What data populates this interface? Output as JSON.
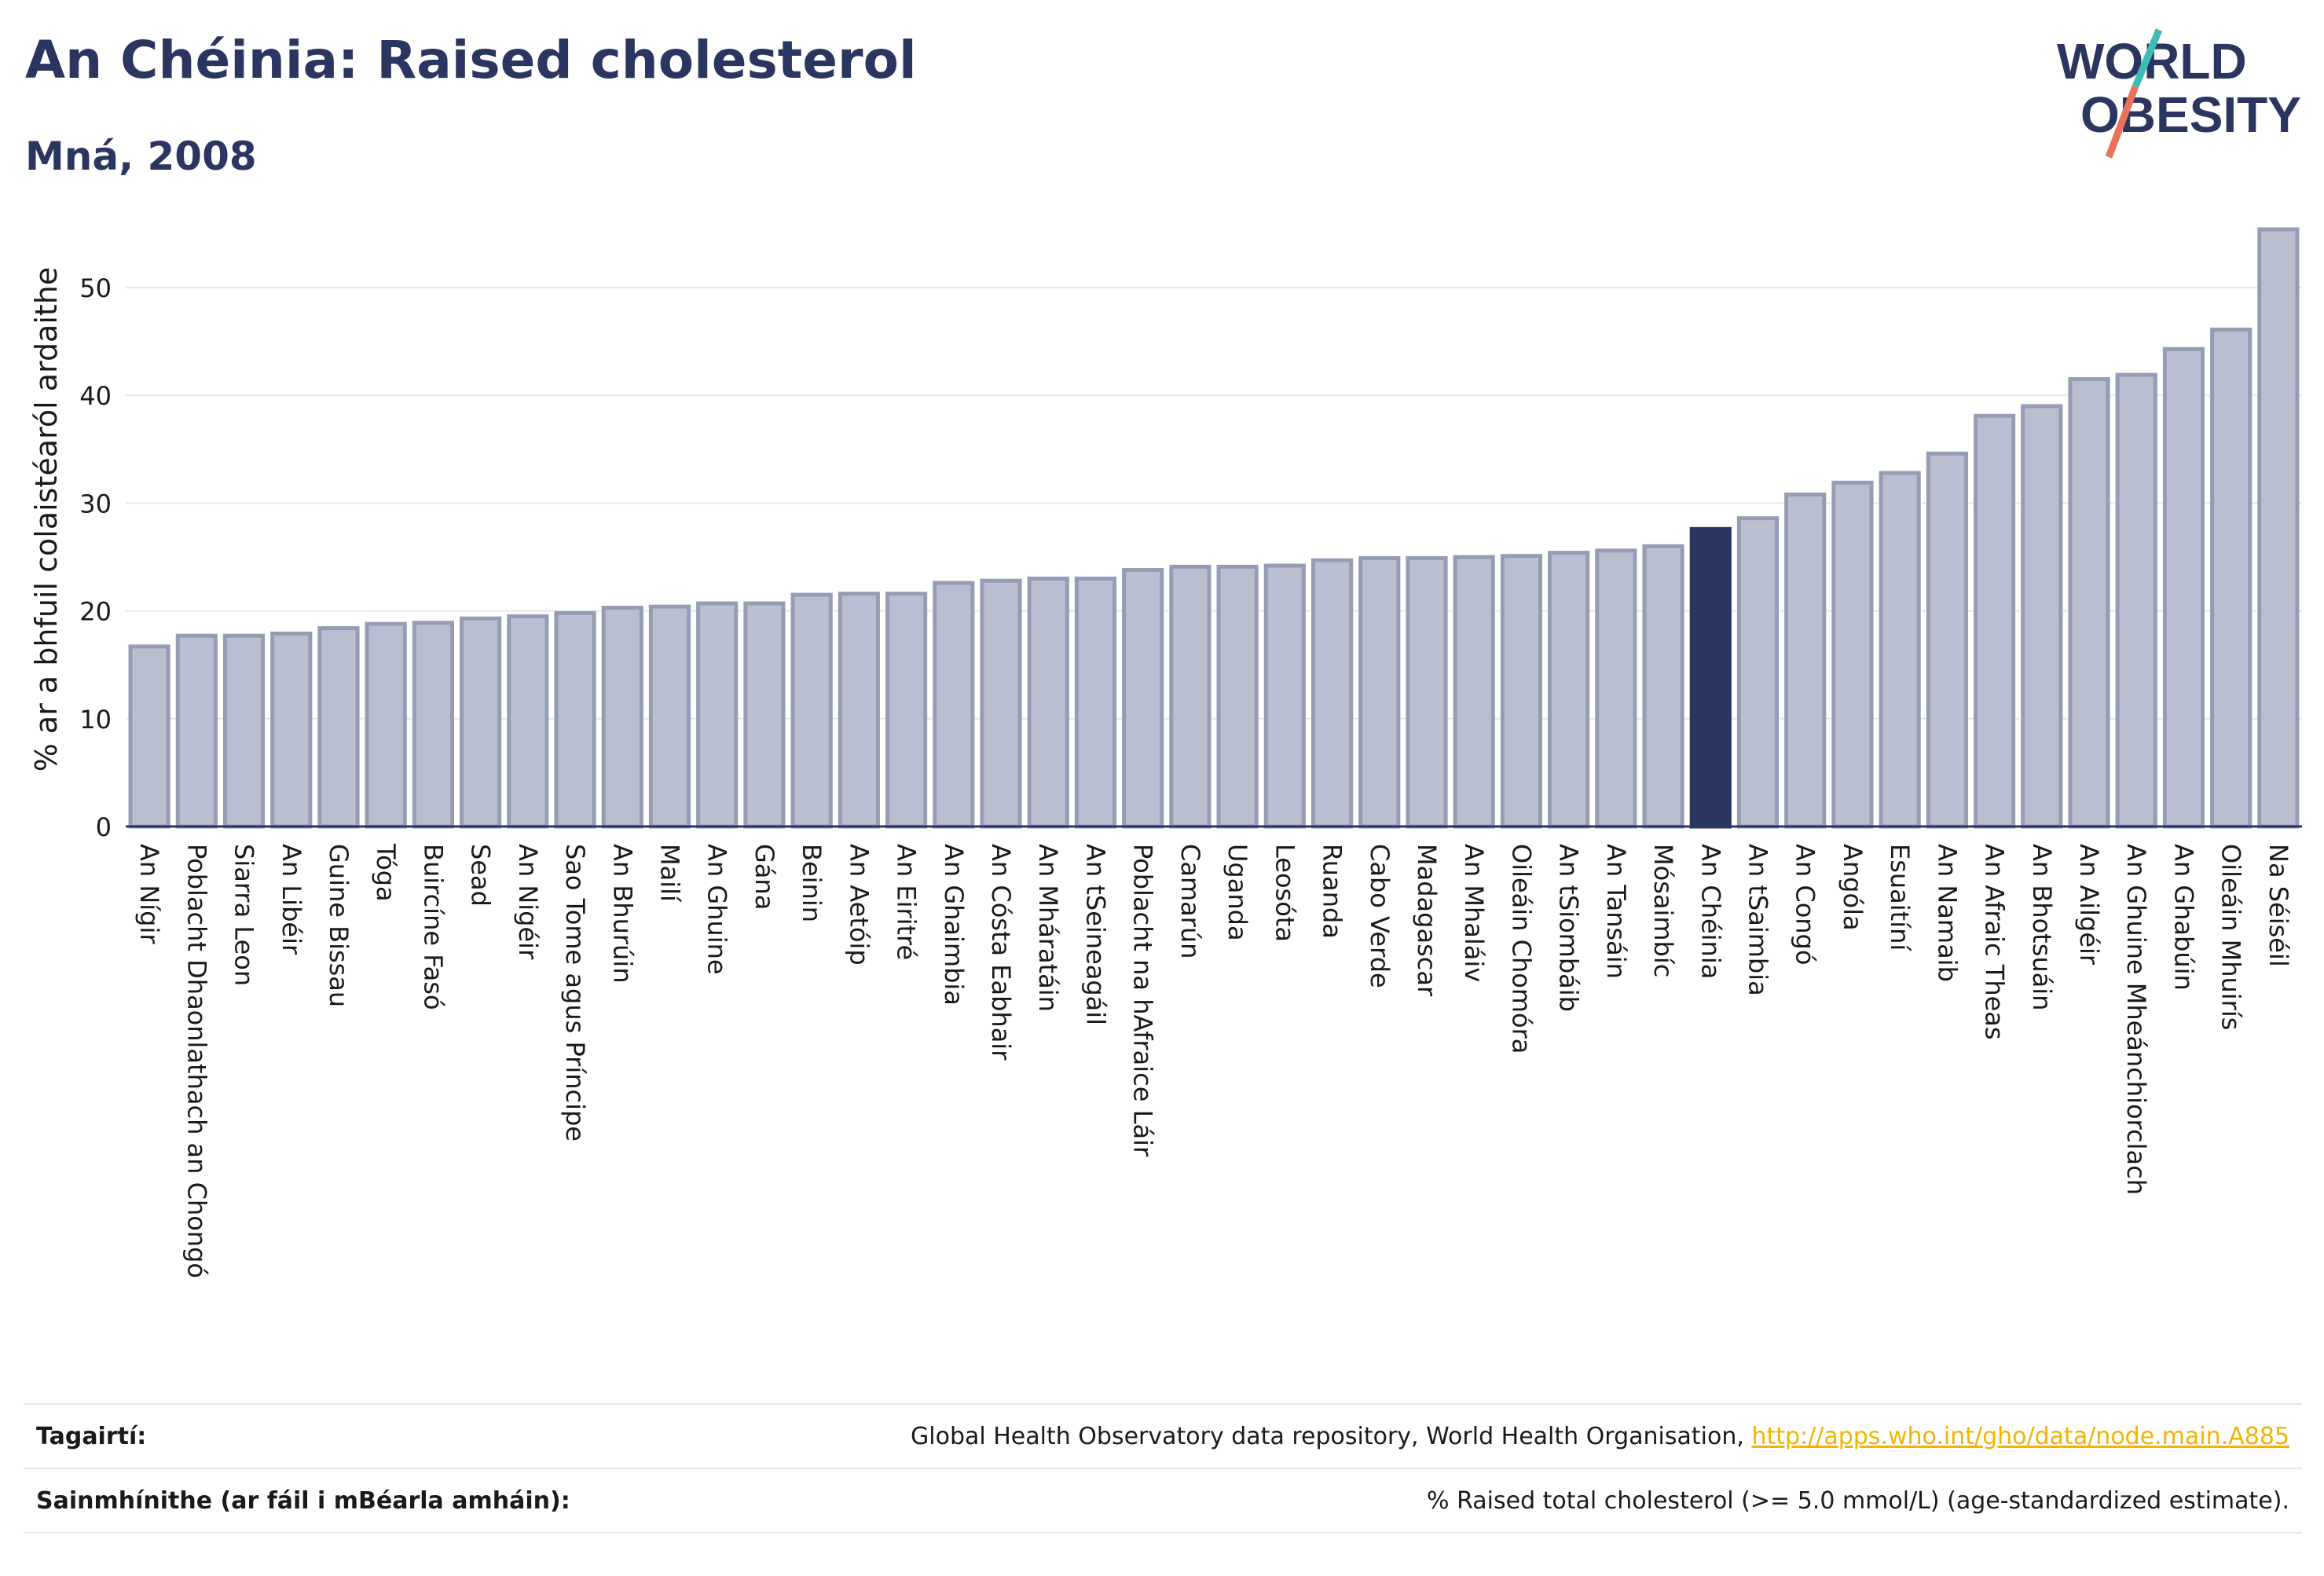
{
  "header": {
    "title": "An Chéinia: Raised cholesterol",
    "subtitle": "Mná, 2008"
  },
  "logo": {
    "line1": "WORLD",
    "line2": "OBESITY",
    "colors": {
      "text": "#2a3560",
      "slash_top": "#3dbdb8",
      "slash_bottom": "#e8735a"
    }
  },
  "colors": {
    "bar": "#b9bfd0",
    "bar_border": "#959db5",
    "highlight": "#2a3560",
    "grid": "#e6e8ef",
    "axis": "#2a3560"
  },
  "chart_data": {
    "type": "bar",
    "ylabel": "% ar a bhfuil colaistéaról ardaithe",
    "ylim": [
      0,
      57
    ],
    "yticks": [
      0,
      10,
      20,
      30,
      40,
      50
    ],
    "grid": true,
    "highlight": "An Chéinia",
    "categories": [
      "An Nígir",
      "Poblacht Dhaonlathach an Chongó",
      "Siarra Leon",
      "An Libéir",
      "Guine Bissau",
      "Tóga",
      "Buircíne Fasó",
      "Sead",
      "An Nigéir",
      "Sao Tome agus Príncipe",
      "An Bhurúin",
      "Mailí",
      "An Ghuine",
      "Gána",
      "Beinin",
      "An Aetóip",
      "An Eiritré",
      "An Ghaimbia",
      "An Cósta Eabhair",
      "An Mháratáin",
      "An tSeineagáil",
      "Poblacht na hAfraice Láir",
      "Camarún",
      "Uganda",
      "Leosóta",
      "Ruanda",
      "Cabo Verde",
      "Madagascar",
      "An Mhaláiv",
      "Oileáin Chomóra",
      "An tSiombáib",
      "An Tansáin",
      "Mósaimbíc",
      "An Chéinia",
      "An tSaimbia",
      "An Congó",
      "Angóla",
      "Esuaitíní",
      "An Namaib",
      "An Afraic Theas",
      "An Bhotsuáin",
      "An Ailgéir",
      "An Ghuine Mheánchiorclach",
      "An Ghabúin",
      "Oileáin Mhuirís",
      "Na Séiséil"
    ],
    "values": [
      16.7,
      17.7,
      17.7,
      17.9,
      18.4,
      18.8,
      18.9,
      19.3,
      19.5,
      19.8,
      20.3,
      20.4,
      20.7,
      20.7,
      21.5,
      21.6,
      21.6,
      22.6,
      22.8,
      23.0,
      23.0,
      23.8,
      24.1,
      24.1,
      24.2,
      24.7,
      24.9,
      24.9,
      25.0,
      25.1,
      25.4,
      25.6,
      26.0,
      27.6,
      28.6,
      30.8,
      31.9,
      32.8,
      34.6,
      38.1,
      39.0,
      41.5,
      41.9,
      44.3,
      46.1,
      55.4
    ]
  },
  "footer": {
    "references_label": "Tagairtí:",
    "references_text": "Global Health Observatory data repository, World Health Organisation, ",
    "references_link": "http://apps.who.int/gho/data/node.main.A885",
    "definitions_label": "Sainmhínithe (ar fáil i mBéarla amháin):",
    "definitions_text": "% Raised total cholesterol (>= 5.0 mmol/L) (age-standardized estimate)."
  }
}
